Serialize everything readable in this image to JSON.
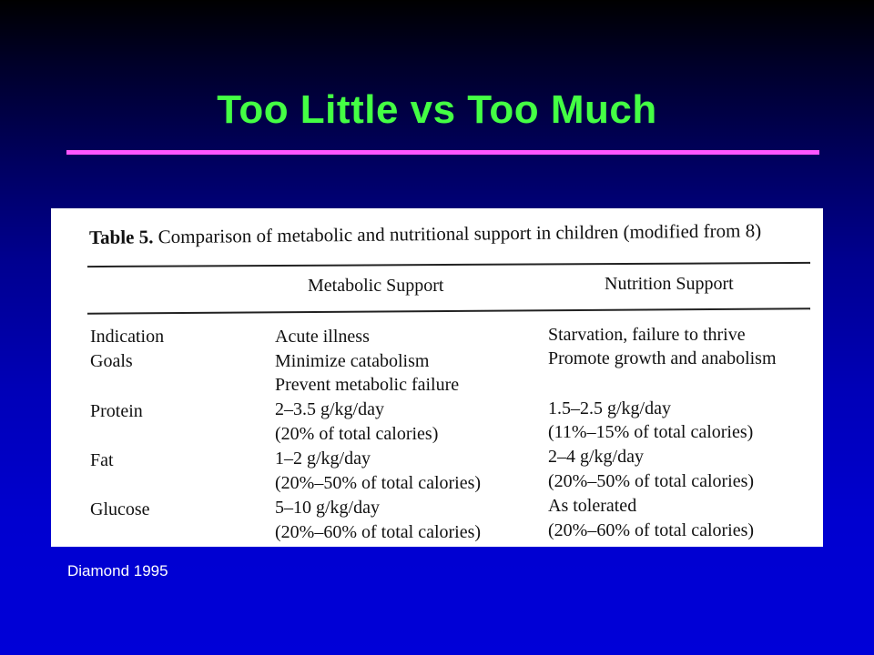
{
  "slide": {
    "title": "Too Little vs Too Much",
    "source": "Diamond 1995",
    "colors": {
      "title": "#44ff44",
      "rule": "#ff55ff",
      "background": "#0000c0"
    }
  },
  "table": {
    "caption_label": "Table 5.",
    "caption_text": "Comparison of metabolic and nutritional support in children (modified from 8)",
    "headers": [
      "Metabolic Support",
      "Nutrition Support"
    ],
    "rows": [
      {
        "label": "Indication",
        "metabolic": [
          "Acute illness"
        ],
        "nutrition": [
          "Starvation, failure to thrive"
        ]
      },
      {
        "label": "Goals",
        "metabolic": [
          "Minimize catabolism",
          "Prevent metabolic failure"
        ],
        "nutrition": [
          "Promote growth and anabolism"
        ]
      },
      {
        "label": "Protein",
        "metabolic": [
          "2–3.5 g/kg/day",
          "(20% of total calories)"
        ],
        "nutrition": [
          "1.5–2.5 g/kg/day",
          "(11%–15% of total calories)"
        ]
      },
      {
        "label": "Fat",
        "metabolic": [
          "1–2 g/kg/day",
          "(20%–50% of total calories)"
        ],
        "nutrition": [
          "2–4 g/kg/day",
          "(20%–50% of total calories)"
        ]
      },
      {
        "label": "Glucose",
        "metabolic": [
          "5–10 g/kg/day",
          "(20%–60% of total calories)"
        ],
        "nutrition": [
          "As tolerated",
          "(20%–60% of total calories)"
        ]
      }
    ]
  }
}
